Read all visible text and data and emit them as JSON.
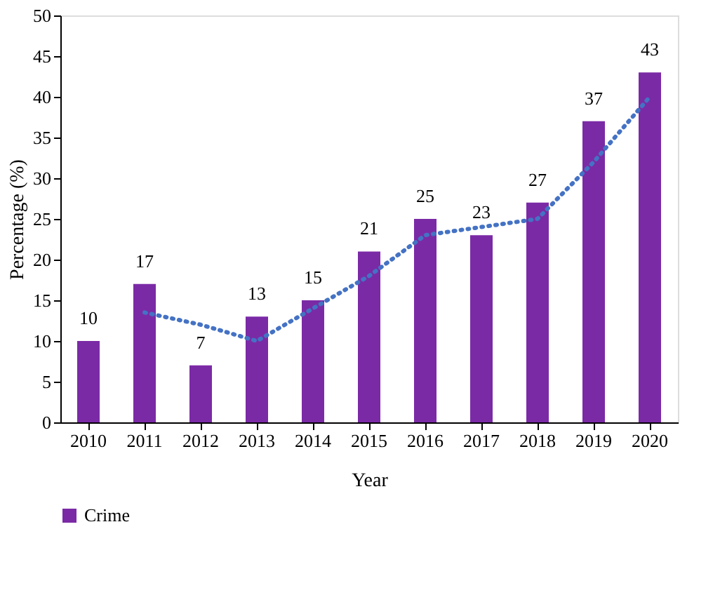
{
  "chart_data": {
    "type": "bar",
    "xlabel": "Year",
    "ylabel": "Percentage (%)",
    "categories": [
      "2010",
      "2011",
      "2012",
      "2013",
      "2014",
      "2015",
      "2016",
      "2017",
      "2018",
      "2019",
      "2020"
    ],
    "series": [
      {
        "name": "Crime",
        "color": "#7b2aa6",
        "values": [
          10,
          17,
          7,
          13,
          15,
          21,
          25,
          23,
          27,
          37,
          43
        ],
        "value_labels": [
          "10",
          "17",
          "7",
          "13",
          "15",
          "21",
          "25",
          "23",
          "27",
          "37",
          "43"
        ]
      },
      {
        "type": "line",
        "color": "#4472c4",
        "line_style": "dotted",
        "values": [
          null,
          13.5,
          12,
          10,
          14,
          18,
          23,
          24,
          25,
          32,
          40
        ]
      }
    ],
    "ylim": [
      0,
      50
    ],
    "yticks": [
      0,
      5,
      10,
      15,
      20,
      25,
      30,
      35,
      40,
      45,
      50
    ],
    "grid": false,
    "legend": "bottom left"
  }
}
